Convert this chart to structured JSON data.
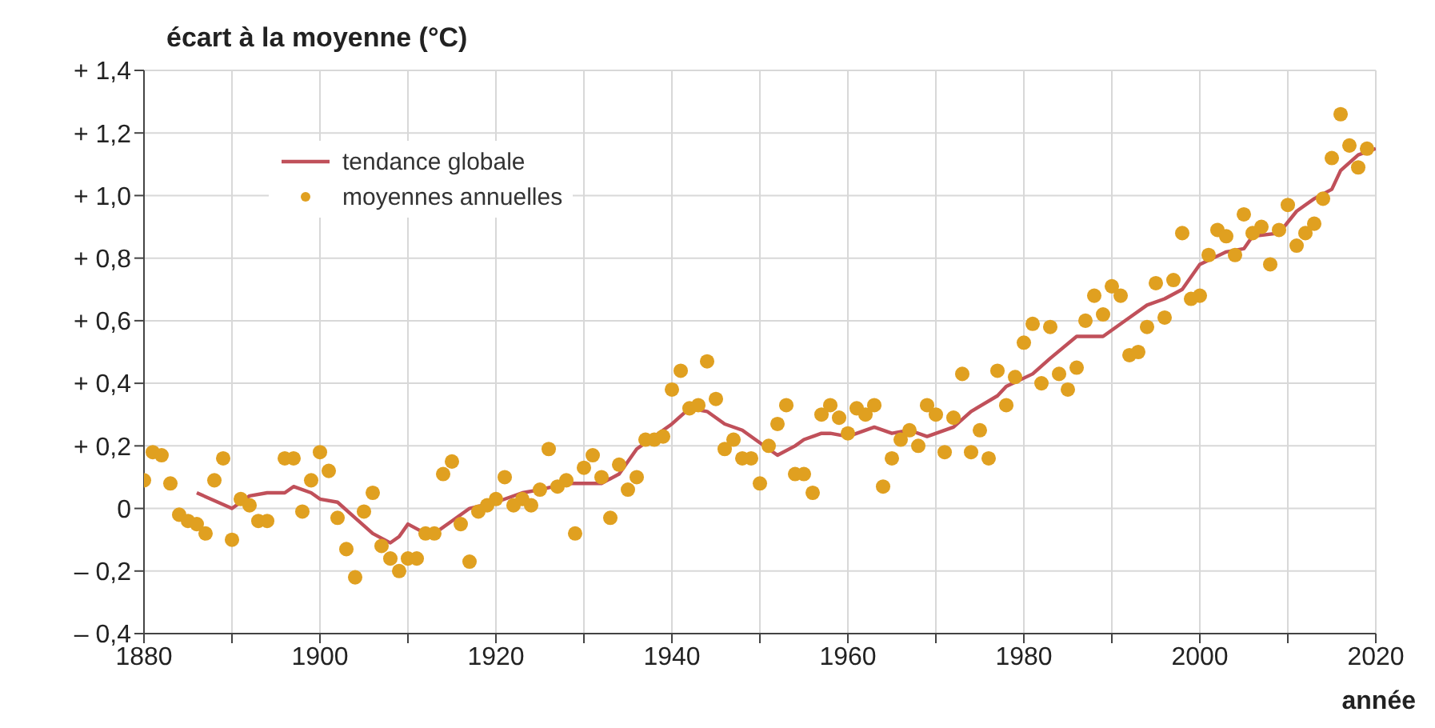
{
  "chart_data": {
    "type": "scatter",
    "ylabel": "écart à la moyenne (°C)",
    "xlabel": "année",
    "xlim": [
      1880,
      2020
    ],
    "xticks": [
      1880,
      {
        "value": 1890,
        "label": null
      },
      1900,
      {
        "value": 1910,
        "label": null
      },
      1920,
      {
        "value": 1930,
        "label": null
      },
      1940,
      {
        "value": 1950,
        "label": null
      },
      1960,
      {
        "value": 1970,
        "label": null
      },
      1980,
      {
        "value": 1990,
        "label": null
      },
      2000,
      {
        "value": 2010,
        "label": null
      },
      2020
    ],
    "ylim": [
      -0.4,
      1.4
    ],
    "yticks": [
      {
        "value": -0.4,
        "label": "– 0,4"
      },
      {
        "value": -0.2,
        "label": "– 0,2"
      },
      {
        "value": 0,
        "label": "0"
      },
      {
        "value": 0.2,
        "label": "+ 0,2"
      },
      {
        "value": 0.4,
        "label": "+ 0,4"
      },
      {
        "value": 0.6,
        "label": "+ 0,6"
      },
      {
        "value": 0.8,
        "label": "+ 0,8"
      },
      {
        "value": 1,
        "label": "+ 1,0"
      },
      {
        "value": 1.2,
        "label": "+ 1,2"
      },
      {
        "value": 1.4,
        "label": "+ 1,4"
      }
    ],
    "grid": true,
    "legend": "top left",
    "series": [
      {
        "name": "tendance globale",
        "type": "line",
        "color": "#c0505a",
        "marker": "none",
        "line_style": "solid",
        "x": [
          1886,
          1890,
          1892,
          1894,
          1896,
          1897,
          1899,
          1900,
          1902,
          1904,
          1906,
          1908,
          1909,
          1910,
          1912,
          1913,
          1915,
          1917,
          1920,
          1923,
          1925,
          1928,
          1932,
          1934,
          1936,
          1938,
          1940,
          1942,
          1944,
          1946,
          1948,
          1950,
          1952,
          1954,
          1955,
          1957,
          1958,
          1960,
          1963,
          1965,
          1967,
          1969,
          1972,
          1974,
          1977,
          1978,
          1981,
          1983,
          1986,
          1989,
          1992,
          1994,
          1996,
          1998,
          2000,
          2003,
          2005,
          2006,
          2009,
          2011,
          2013,
          2015,
          2016,
          2018,
          2020
        ],
        "values": [
          0.05,
          0.0,
          0.04,
          0.05,
          0.05,
          0.07,
          0.05,
          0.03,
          0.02,
          -0.03,
          -0.08,
          -0.11,
          -0.09,
          -0.05,
          -0.08,
          -0.08,
          -0.04,
          0.0,
          0.02,
          0.05,
          0.06,
          0.08,
          0.08,
          0.11,
          0.19,
          0.23,
          0.27,
          0.32,
          0.31,
          0.27,
          0.25,
          0.21,
          0.17,
          0.2,
          0.22,
          0.24,
          0.24,
          0.23,
          0.26,
          0.24,
          0.25,
          0.23,
          0.26,
          0.31,
          0.36,
          0.39,
          0.43,
          0.48,
          0.55,
          0.55,
          0.61,
          0.65,
          0.67,
          0.7,
          0.78,
          0.82,
          0.83,
          0.87,
          0.88,
          0.95,
          0.99,
          1.02,
          1.08,
          1.13,
          1.15
        ]
      },
      {
        "name": "moyennes annuelles",
        "color": "#e0a020",
        "marker": "circle",
        "x": [
          1880,
          1881,
          1882,
          1883,
          1884,
          1885,
          1886,
          1887,
          1888,
          1889,
          1890,
          1891,
          1892,
          1893,
          1894,
          1896,
          1897,
          1898,
          1899,
          1900,
          1901,
          1902,
          1903,
          1904,
          1905,
          1906,
          1907,
          1908,
          1909,
          1910,
          1911,
          1912,
          1913,
          1914,
          1915,
          1916,
          1917,
          1918,
          1919,
          1920,
          1921,
          1922,
          1923,
          1924,
          1925,
          1926,
          1927,
          1928,
          1929,
          1930,
          1931,
          1932,
          1933,
          1934,
          1935,
          1936,
          1937,
          1938,
          1939,
          1940,
          1941,
          1942,
          1943,
          1944,
          1945,
          1946,
          1947,
          1948,
          1949,
          1950,
          1951,
          1952,
          1953,
          1954,
          1955,
          1956,
          1957,
          1958,
          1959,
          1960,
          1961,
          1962,
          1963,
          1964,
          1965,
          1966,
          1967,
          1968,
          1969,
          1970,
          1971,
          1972,
          1973,
          1974,
          1975,
          1976,
          1977,
          1978,
          1979,
          1980,
          1981,
          1982,
          1983,
          1984,
          1985,
          1986,
          1987,
          1988,
          1989,
          1990,
          1991,
          1992,
          1993,
          1994,
          1995,
          1996,
          1997,
          1998,
          1999,
          2000,
          2001,
          2002,
          2003,
          2004,
          2005,
          2006,
          2007,
          2008,
          2009,
          2010,
          2011,
          2012,
          2013,
          2014,
          2015,
          2016,
          2017,
          2018,
          2019
        ],
        "values": [
          0.09,
          0.18,
          0.17,
          0.08,
          -0.02,
          -0.04,
          -0.05,
          -0.08,
          0.09,
          0.16,
          -0.1,
          0.03,
          0.01,
          -0.04,
          -0.04,
          0.16,
          0.16,
          -0.01,
          0.09,
          0.18,
          0.12,
          -0.03,
          -0.13,
          -0.22,
          -0.01,
          0.05,
          -0.12,
          -0.16,
          -0.2,
          -0.16,
          -0.16,
          -0.08,
          -0.08,
          0.11,
          0.15,
          -0.05,
          -0.17,
          -0.01,
          0.01,
          0.03,
          0.1,
          0.01,
          0.03,
          0.01,
          0.06,
          0.19,
          0.07,
          0.09,
          -0.08,
          0.13,
          0.17,
          0.1,
          -0.03,
          0.14,
          0.06,
          0.1,
          0.22,
          0.22,
          0.23,
          0.38,
          0.44,
          0.32,
          0.33,
          0.47,
          0.35,
          0.19,
          0.22,
          0.16,
          0.16,
          0.08,
          0.2,
          0.27,
          0.33,
          0.11,
          0.11,
          0.05,
          0.3,
          0.33,
          0.29,
          0.24,
          0.32,
          0.3,
          0.33,
          0.07,
          0.16,
          0.22,
          0.25,
          0.2,
          0.33,
          0.3,
          0.18,
          0.29,
          0.43,
          0.18,
          0.25,
          0.16,
          0.44,
          0.33,
          0.42,
          0.53,
          0.59,
          0.4,
          0.58,
          0.43,
          0.38,
          0.45,
          0.6,
          0.68,
          0.62,
          0.71,
          0.68,
          0.49,
          0.5,
          0.58,
          0.72,
          0.61,
          0.73,
          0.88,
          0.67,
          0.68,
          0.81,
          0.89,
          0.87,
          0.81,
          0.94,
          0.88,
          0.9,
          0.78,
          0.89,
          0.97,
          0.84,
          0.88,
          0.91,
          0.99,
          1.12,
          1.26,
          1.16,
          1.09,
          1.15
        ]
      }
    ]
  }
}
